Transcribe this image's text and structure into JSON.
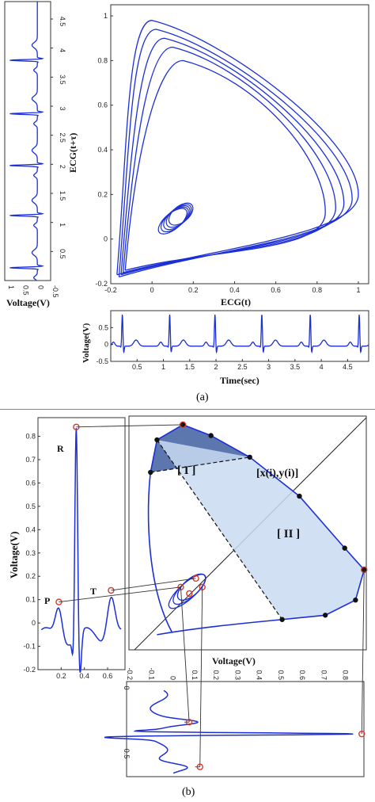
{
  "colors": {
    "trace": "#1c2fd6",
    "marker_ring": "#d33a2c",
    "marker_dot": "#111111",
    "region1": "#3f5fa0",
    "region2": "#c9daf1",
    "guide": "#333333"
  },
  "labels": {
    "a_time_axis_left": "Voltage(V)",
    "a_phase_x": "ECG(t)",
    "a_phase_y": "ECG(t+τ)",
    "a_bottom_y": "Voltage(V)",
    "a_bottom_x": "Time(sec)",
    "caption_a": "(a)",
    "b_left_y": "Voltage(V)",
    "b_right_x": "Voltage(V)",
    "region_I": "[ I ]",
    "region_II": "[ II ]",
    "point_label": "[x(i),y(i)]",
    "wave_R": "R",
    "wave_T": "T",
    "wave_P": "P",
    "caption_b": "(b)"
  },
  "chart_data": [
    {
      "id": "a-left-vertical",
      "type": "line",
      "xlabel": "Voltage(V)",
      "xticks": [
        1,
        0.5,
        0,
        -0.5
      ],
      "yticks": [
        0.5,
        1,
        1.5,
        2,
        2.5,
        3,
        3.5,
        4,
        4.5
      ],
      "ylim": [
        0,
        4.8
      ],
      "r_peak_times": [
        0.22,
        1.12,
        1.98,
        2.87,
        3.79
      ]
    },
    {
      "id": "a-phase-portrait",
      "type": "line",
      "xlabel": "ECG(t)",
      "ylabel": "ECG(t+τ)",
      "xlim": [
        -0.2,
        1.05
      ],
      "ylim": [
        -0.2,
        1.05
      ],
      "xticks": [
        -0.2,
        0,
        0.2,
        0.4,
        0.6,
        0.8,
        1
      ],
      "yticks": [
        -0.2,
        0,
        0.2,
        0.4,
        0.6,
        0.8,
        1
      ],
      "loops": [
        {
          "apex": [
            0,
            0.98
          ],
          "right": [
            1.0,
            0.2
          ],
          "foot": [
            -0.17,
            -0.16
          ]
        },
        {
          "apex": [
            0.02,
            0.94
          ],
          "right": [
            0.97,
            0.18
          ],
          "foot": [
            -0.16,
            -0.17
          ]
        },
        {
          "apex": [
            0.06,
            0.9
          ],
          "right": [
            0.93,
            0.16
          ],
          "foot": [
            -0.15,
            -0.16
          ]
        },
        {
          "apex": [
            0.1,
            0.86
          ],
          "right": [
            0.89,
            0.14
          ],
          "foot": [
            -0.14,
            -0.15
          ]
        },
        {
          "apex": [
            0.15,
            0.8
          ],
          "right": [
            0.84,
            0.12
          ],
          "foot": [
            -0.13,
            -0.14
          ]
        }
      ]
    },
    {
      "id": "a-bottom-time",
      "type": "line",
      "xlabel": "Time(sec)",
      "ylabel": "Voltage(V)",
      "xlim": [
        0,
        4.9
      ],
      "ylim": [
        -0.5,
        1
      ],
      "xticks": [
        0.5,
        1,
        1.5,
        2,
        2.5,
        3,
        3.5,
        4,
        4.5
      ],
      "yticks": [
        -0.5,
        0,
        0.5
      ],
      "r_peak_times": [
        0.22,
        1.12,
        1.98,
        2.87,
        3.79,
        4.72
      ]
    },
    {
      "id": "b-left-beat",
      "type": "line",
      "ylabel": "Voltage(V)",
      "xlim": [
        0,
        0.75
      ],
      "ylim": [
        -0.2,
        0.88
      ],
      "xticks": [
        0.2,
        0.4,
        0.6
      ],
      "yticks": [
        -0.2,
        -0.1,
        0,
        0.1,
        0.2,
        0.3,
        0.4,
        0.5,
        0.6,
        0.7,
        0.8
      ],
      "R": {
        "t": 0.33,
        "v": 0.84
      },
      "T": {
        "t": 0.63,
        "v": 0.14
      },
      "P": {
        "t": 0.18,
        "v": 0.09
      }
    },
    {
      "id": "b-right-phase",
      "type": "line",
      "xlabel": "Voltage(V)",
      "xlim": [
        -0.2,
        0.9
      ],
      "ylim": [
        -0.2,
        0.88
      ],
      "xticks": [
        -0.2,
        -0.1,
        0,
        0.1,
        0.2,
        0.3,
        0.4,
        0.5,
        0.6,
        0.7,
        0.8
      ],
      "boundary_points": [
        [
          -0.1,
          0.62
        ],
        [
          -0.07,
          0.77
        ],
        [
          0.05,
          0.84
        ],
        [
          0.18,
          0.79
        ],
        [
          0.36,
          0.69
        ],
        [
          0.59,
          0.51
        ],
        [
          0.8,
          0.27
        ],
        [
          0.89,
          0.17
        ],
        [
          0.85,
          0.03
        ],
        [
          0.71,
          -0.04
        ],
        [
          0.51,
          -0.06
        ]
      ],
      "small_loop_markers": [
        [
          0.04,
          0.09
        ],
        [
          0.11,
          0.13
        ],
        [
          0.14,
          0.09
        ],
        [
          0.08,
          0.06
        ]
      ]
    },
    {
      "id": "b-bottom-rotated",
      "type": "line",
      "yticks": [
        0,
        0.5
      ],
      "markers": [
        0.26,
        0.35,
        0.6
      ]
    }
  ]
}
